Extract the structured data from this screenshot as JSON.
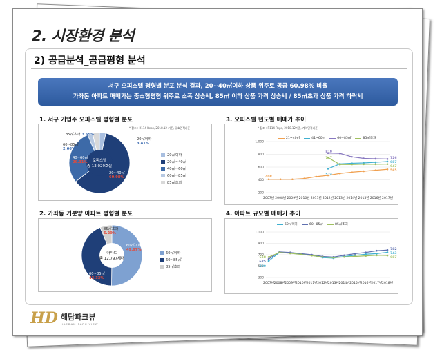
{
  "page_title": "2. 시장환경 분석",
  "section_title": "2) 공급분석_공급평형 분석",
  "banner": {
    "line1": "서구 오피스텔 평형별 분포 분석 결과, 20~40㎡이하 상품 위주로 공급 60.98% 비율",
    "line2": "가좌동 아파트 매매가는 중소형평형 위주로 소폭 상승세, 85㎡ 이하 상품 가격 상승세 / 85㎡초과 상품 가격 하락세"
  },
  "panel1": {
    "title": "1. 서구 기입주 오피스텔 평형별 분포",
    "note": "* 참조 : R114 Reps, 2018.12 기준, 유효면적기준",
    "center_line1": "오피스텔",
    "center_line2": "총 13,029호실",
    "labels": [
      {
        "name": "20㎡이하",
        "pct": "3.41%"
      },
      {
        "name": "20~40㎡",
        "pct": "60.98%"
      },
      {
        "name": "40~60㎡",
        "pct": "29.31%"
      },
      {
        "name": "60~85㎡",
        "pct": "2.66%"
      },
      {
        "name": "85㎡초과",
        "pct": "3.65%"
      }
    ],
    "legend": [
      "20㎡이하",
      "20㎡~40㎡",
      "40㎡~60㎡",
      "60㎡~85㎡",
      "85㎡초과"
    ],
    "colors": [
      "#a9bfe0",
      "#1f3f78",
      "#3d6aa8",
      "#b7c9e2",
      "#d9d9d9"
    ]
  },
  "panel2": {
    "title": "2. 가좌동 기분양 아파트 평형별 분포",
    "center_line1": "아파트",
    "center_line2": "총 12,797세대",
    "labels": [
      {
        "name": "60㎡이하",
        "pct": "49.97%"
      },
      {
        "name": "60~85㎡",
        "pct": "43.33%"
      },
      {
        "name": "85㎡초과",
        "pct": "6.29%"
      }
    ],
    "legend": [
      "60㎡이하",
      "60~85㎡",
      "85㎡초과"
    ],
    "colors": [
      "#7ea1d1",
      "#1f3f78",
      "#d0d0d0"
    ]
  },
  "panel3": {
    "title": "3. 오피스텔 년도별 매매가 추이",
    "note": "* 참조 : R114 Reps, 2018.12기준, 계약면적기준",
    "series_names": [
      "21~40㎡",
      "41~60㎡",
      "60~85㎡",
      "85㎡초과"
    ],
    "colors": [
      "#f0a050",
      "#40b0d0",
      "#8878c0",
      "#a0c060"
    ],
    "y_ticks": [
      "1,000",
      "800",
      "600",
      "400",
      "200"
    ],
    "x_ticks": [
      "2007년",
      "2008년",
      "2009년",
      "2010년",
      "2011년",
      "2012년",
      "2013년",
      "2014년",
      "2015년",
      "2016년",
      "2017년"
    ],
    "data_labels": [
      "408",
      "574",
      "747",
      "819",
      "726",
      "687",
      "647",
      "565"
    ]
  },
  "panel4": {
    "title": "4. 아파트 규모별 매매가 추이",
    "series_names": [
      "60㎡이하",
      "60~85㎡",
      "85㎡초과"
    ],
    "colors": [
      "#40b0d0",
      "#6070b0",
      "#a0c060"
    ],
    "y_ticks": [
      "1,100",
      "900",
      "700",
      "500",
      "300"
    ],
    "x_ticks": [
      "2007년",
      "2008년",
      "2009년",
      "2010년",
      "2011년",
      "2012년",
      "2013년",
      "2014년",
      "2015년",
      "2016년",
      "2017년",
      "2018년"
    ],
    "data_labels": [
      "658",
      "625",
      "590",
      "782",
      "743",
      "687"
    ]
  },
  "logo": {
    "mark": "HD",
    "name": "해담파크뷰",
    "sub": "HAEDAM PARK VIEW"
  },
  "chart_data": [
    {
      "type": "pie",
      "title": "1. 서구 기입주 오피스텔 평형별 분포",
      "categories": [
        "20㎡이하",
        "20~40㎡",
        "40~60㎡",
        "60~85㎡",
        "85㎡초과"
      ],
      "values": [
        3.41,
        60.98,
        29.31,
        2.66,
        3.65
      ]
    },
    {
      "type": "pie",
      "title": "2. 가좌동 기분양 아파트 평형별 분포",
      "categories": [
        "60㎡이하",
        "60~85㎡",
        "85㎡초과"
      ],
      "values": [
        49.97,
        43.33,
        6.29
      ]
    },
    {
      "type": "line",
      "title": "3. 오피스텔 년도별 매매가 추이",
      "categories": [
        "2007년",
        "2008년",
        "2009년",
        "2010년",
        "2011년",
        "2012년",
        "2013년",
        "2014년",
        "2015년",
        "2016년",
        "2017년"
      ],
      "ylim": [
        200,
        1000
      ],
      "series": [
        {
          "name": "21~40㎡",
          "values": [
            408,
            408,
            408,
            420,
            450,
            470,
            500,
            520,
            535,
            550,
            565
          ]
        },
        {
          "name": "41~60㎡",
          "values": [
            null,
            null,
            null,
            null,
            null,
            574,
            650,
            660,
            665,
            675,
            687
          ]
        },
        {
          "name": "60~85㎡",
          "values": [
            null,
            null,
            null,
            null,
            null,
            819,
            815,
            760,
            735,
            730,
            726
          ]
        },
        {
          "name": "85㎡초과",
          "values": [
            null,
            null,
            null,
            null,
            null,
            747,
            640,
            640,
            645,
            645,
            647
          ]
        }
      ]
    },
    {
      "type": "line",
      "title": "4. 아파트 규모별 매매가 추이",
      "categories": [
        "2007년",
        "2008년",
        "2009년",
        "2010년",
        "2011년",
        "2012년",
        "2013년",
        "2014년",
        "2015년",
        "2016년",
        "2017년",
        "2018년"
      ],
      "ylim": [
        300,
        1100
      ],
      "series": [
        {
          "name": "60㎡이하",
          "values": [
            590,
            740,
            730,
            710,
            690,
            650,
            640,
            670,
            690,
            710,
            720,
            743
          ]
        },
        {
          "name": "60~85㎡",
          "values": [
            625,
            750,
            740,
            720,
            700,
            670,
            660,
            690,
            720,
            740,
            770,
            782
          ]
        },
        {
          "name": "85㎡초과",
          "values": [
            658,
            740,
            725,
            705,
            685,
            660,
            650,
            660,
            670,
            680,
            690,
            687
          ]
        }
      ]
    }
  ]
}
